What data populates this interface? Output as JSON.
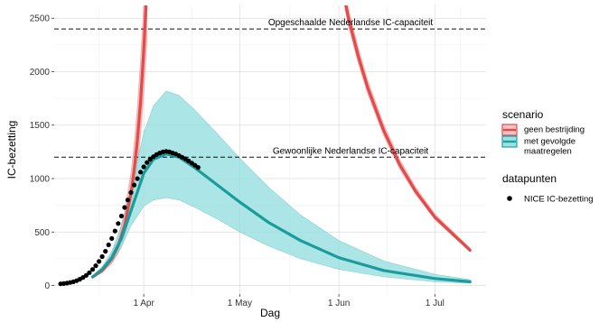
{
  "chart_data": {
    "type": "line",
    "title": "",
    "xlabel": "Dag",
    "ylabel": "IC-bezetting",
    "x_axis": {
      "type": "date",
      "range": [
        "2020-03-04",
        "2020-07-17"
      ],
      "ticks": [
        {
          "date": "2020-04-01",
          "label": "1 Apr"
        },
        {
          "date": "2020-05-01",
          "label": "1 May"
        },
        {
          "date": "2020-06-01",
          "label": "1 Jun"
        },
        {
          "date": "2020-07-01",
          "label": "1 Jul"
        }
      ]
    },
    "y_axis": {
      "range": [
        -80,
        2620
      ],
      "ticks": [
        0,
        500,
        1000,
        1500,
        2000,
        2500
      ]
    },
    "grid": true,
    "reference_lines": [
      {
        "y": 2400,
        "label": "Opgeschaalde Nederlandse IC-capaciteit",
        "style": "dashed"
      },
      {
        "y": 1200,
        "label": "Gewoonlijke Nederlandse IC-capaciteit",
        "style": "dashed"
      }
    ],
    "legend": {
      "placement": "right",
      "scenario_title": "scenario",
      "scenario_items": [
        {
          "label": "geen bestrijding",
          "color": "#e34a4a"
        },
        {
          "label": "met gevolgde maatregelen",
          "label_lines": [
            "met gevolgde",
            "maatregelen"
          ],
          "color": "#1aa3a3"
        }
      ],
      "points_title": "datapunten",
      "points_items": [
        {
          "label": "NICE IC-bezetting"
        }
      ]
    },
    "series": [
      {
        "scenario": "geen bestrijding",
        "kind": "line_with_ribbon",
        "color": "#e34a4a",
        "ribbon_color": "#f2a9a9",
        "points": [
          {
            "x": "2020-03-16",
            "y": 80,
            "lo": 70,
            "hi": 92
          },
          {
            "x": "2020-03-19",
            "y": 140,
            "lo": 118,
            "hi": 165
          },
          {
            "x": "2020-03-22",
            "y": 250,
            "lo": 205,
            "hi": 300
          },
          {
            "x": "2020-03-24",
            "y": 370,
            "lo": 300,
            "hi": 450
          },
          {
            "x": "2020-03-26",
            "y": 560,
            "lo": 450,
            "hi": 690
          },
          {
            "x": "2020-03-28",
            "y": 860,
            "lo": 700,
            "hi": 1060
          },
          {
            "x": "2020-03-29",
            "y": 1080,
            "lo": 880,
            "hi": 1330
          },
          {
            "x": "2020-03-30",
            "y": 1360,
            "lo": 1110,
            "hi": 1680
          },
          {
            "x": "2020-03-31",
            "y": 1720,
            "lo": 1400,
            "hi": 2120
          },
          {
            "x": "2020-04-01",
            "y": 2200,
            "lo": 1780,
            "hi": 2650
          },
          {
            "x": "2020-04-02",
            "y": 2800,
            "lo": 2280,
            "hi": 3300
          }
        ]
      },
      {
        "scenario": "geen bestrijding",
        "kind": "line_with_ribbon",
        "color": "#e34a4a",
        "ribbon_color": "#f2a9a9",
        "points": [
          {
            "x": "2020-06-02",
            "y": 2800,
            "lo": 2720,
            "hi": 2880
          },
          {
            "x": "2020-06-04",
            "y": 2500,
            "lo": 2420,
            "hi": 2590
          },
          {
            "x": "2020-06-07",
            "y": 2150,
            "lo": 2080,
            "hi": 2230
          },
          {
            "x": "2020-06-10",
            "y": 1850,
            "lo": 1790,
            "hi": 1920
          },
          {
            "x": "2020-06-15",
            "y": 1450,
            "lo": 1400,
            "hi": 1510
          },
          {
            "x": "2020-06-20",
            "y": 1130,
            "lo": 1090,
            "hi": 1180
          },
          {
            "x": "2020-06-25",
            "y": 880,
            "lo": 850,
            "hi": 920
          },
          {
            "x": "2020-07-01",
            "y": 640,
            "lo": 615,
            "hi": 670
          },
          {
            "x": "2020-07-07",
            "y": 470,
            "lo": 450,
            "hi": 495
          },
          {
            "x": "2020-07-12",
            "y": 330,
            "lo": 315,
            "hi": 350
          }
        ]
      },
      {
        "scenario": "met gevolgde maatregelen",
        "kind": "line_with_ribbon",
        "color": "#1a9c9c",
        "ribbon_color": "#8fdcdc",
        "points": [
          {
            "x": "2020-03-16",
            "y": 80,
            "lo": 70,
            "hi": 92
          },
          {
            "x": "2020-03-19",
            "y": 150,
            "lo": 130,
            "hi": 175
          },
          {
            "x": "2020-03-22",
            "y": 260,
            "lo": 220,
            "hi": 320
          },
          {
            "x": "2020-03-25",
            "y": 440,
            "lo": 360,
            "hi": 560
          },
          {
            "x": "2020-03-28",
            "y": 700,
            "lo": 560,
            "hi": 920
          },
          {
            "x": "2020-04-01",
            "y": 1050,
            "lo": 740,
            "hi": 1430
          },
          {
            "x": "2020-04-04",
            "y": 1180,
            "lo": 800,
            "hi": 1680
          },
          {
            "x": "2020-04-08",
            "y": 1230,
            "lo": 820,
            "hi": 1820
          },
          {
            "x": "2020-04-12",
            "y": 1200,
            "lo": 800,
            "hi": 1780
          },
          {
            "x": "2020-04-17",
            "y": 1100,
            "lo": 730,
            "hi": 1640
          },
          {
            "x": "2020-04-24",
            "y": 940,
            "lo": 620,
            "hi": 1420
          },
          {
            "x": "2020-05-01",
            "y": 780,
            "lo": 500,
            "hi": 1190
          },
          {
            "x": "2020-05-10",
            "y": 590,
            "lo": 370,
            "hi": 920
          },
          {
            "x": "2020-05-20",
            "y": 420,
            "lo": 250,
            "hi": 660
          },
          {
            "x": "2020-06-01",
            "y": 260,
            "lo": 150,
            "hi": 420
          },
          {
            "x": "2020-06-15",
            "y": 140,
            "lo": 80,
            "hi": 230
          },
          {
            "x": "2020-07-01",
            "y": 65,
            "lo": 35,
            "hi": 105
          },
          {
            "x": "2020-07-12",
            "y": 35,
            "lo": 20,
            "hi": 55
          }
        ]
      },
      {
        "name": "NICE IC-bezetting",
        "kind": "points",
        "color": "#000000",
        "points": [
          {
            "x": "2020-03-06",
            "y": 15
          },
          {
            "x": "2020-03-07",
            "y": 18
          },
          {
            "x": "2020-03-08",
            "y": 22
          },
          {
            "x": "2020-03-09",
            "y": 28
          },
          {
            "x": "2020-03-10",
            "y": 35
          },
          {
            "x": "2020-03-11",
            "y": 45
          },
          {
            "x": "2020-03-12",
            "y": 58
          },
          {
            "x": "2020-03-13",
            "y": 75
          },
          {
            "x": "2020-03-14",
            "y": 95
          },
          {
            "x": "2020-03-15",
            "y": 120
          },
          {
            "x": "2020-03-16",
            "y": 150
          },
          {
            "x": "2020-03-17",
            "y": 185
          },
          {
            "x": "2020-03-18",
            "y": 225
          },
          {
            "x": "2020-03-19",
            "y": 270
          },
          {
            "x": "2020-03-20",
            "y": 320
          },
          {
            "x": "2020-03-21",
            "y": 380
          },
          {
            "x": "2020-03-22",
            "y": 440
          },
          {
            "x": "2020-03-23",
            "y": 510
          },
          {
            "x": "2020-03-24",
            "y": 580
          },
          {
            "x": "2020-03-25",
            "y": 650
          },
          {
            "x": "2020-03-26",
            "y": 730
          },
          {
            "x": "2020-03-27",
            "y": 800
          },
          {
            "x": "2020-03-28",
            "y": 870
          },
          {
            "x": "2020-03-29",
            "y": 940
          },
          {
            "x": "2020-03-30",
            "y": 1000
          },
          {
            "x": "2020-03-31",
            "y": 1060
          },
          {
            "x": "2020-04-01",
            "y": 1110
          },
          {
            "x": "2020-04-02",
            "y": 1150
          },
          {
            "x": "2020-04-03",
            "y": 1180
          },
          {
            "x": "2020-04-04",
            "y": 1205
          },
          {
            "x": "2020-04-05",
            "y": 1225
          },
          {
            "x": "2020-04-06",
            "y": 1240
          },
          {
            "x": "2020-04-07",
            "y": 1250
          },
          {
            "x": "2020-04-08",
            "y": 1255
          },
          {
            "x": "2020-04-09",
            "y": 1250
          },
          {
            "x": "2020-04-10",
            "y": 1240
          },
          {
            "x": "2020-04-11",
            "y": 1230
          },
          {
            "x": "2020-04-12",
            "y": 1215
          },
          {
            "x": "2020-04-13",
            "y": 1200
          },
          {
            "x": "2020-04-14",
            "y": 1185
          },
          {
            "x": "2020-04-15",
            "y": 1165
          },
          {
            "x": "2020-04-16",
            "y": 1145
          },
          {
            "x": "2020-04-17",
            "y": 1125
          },
          {
            "x": "2020-04-18",
            "y": 1105
          }
        ]
      }
    ]
  }
}
